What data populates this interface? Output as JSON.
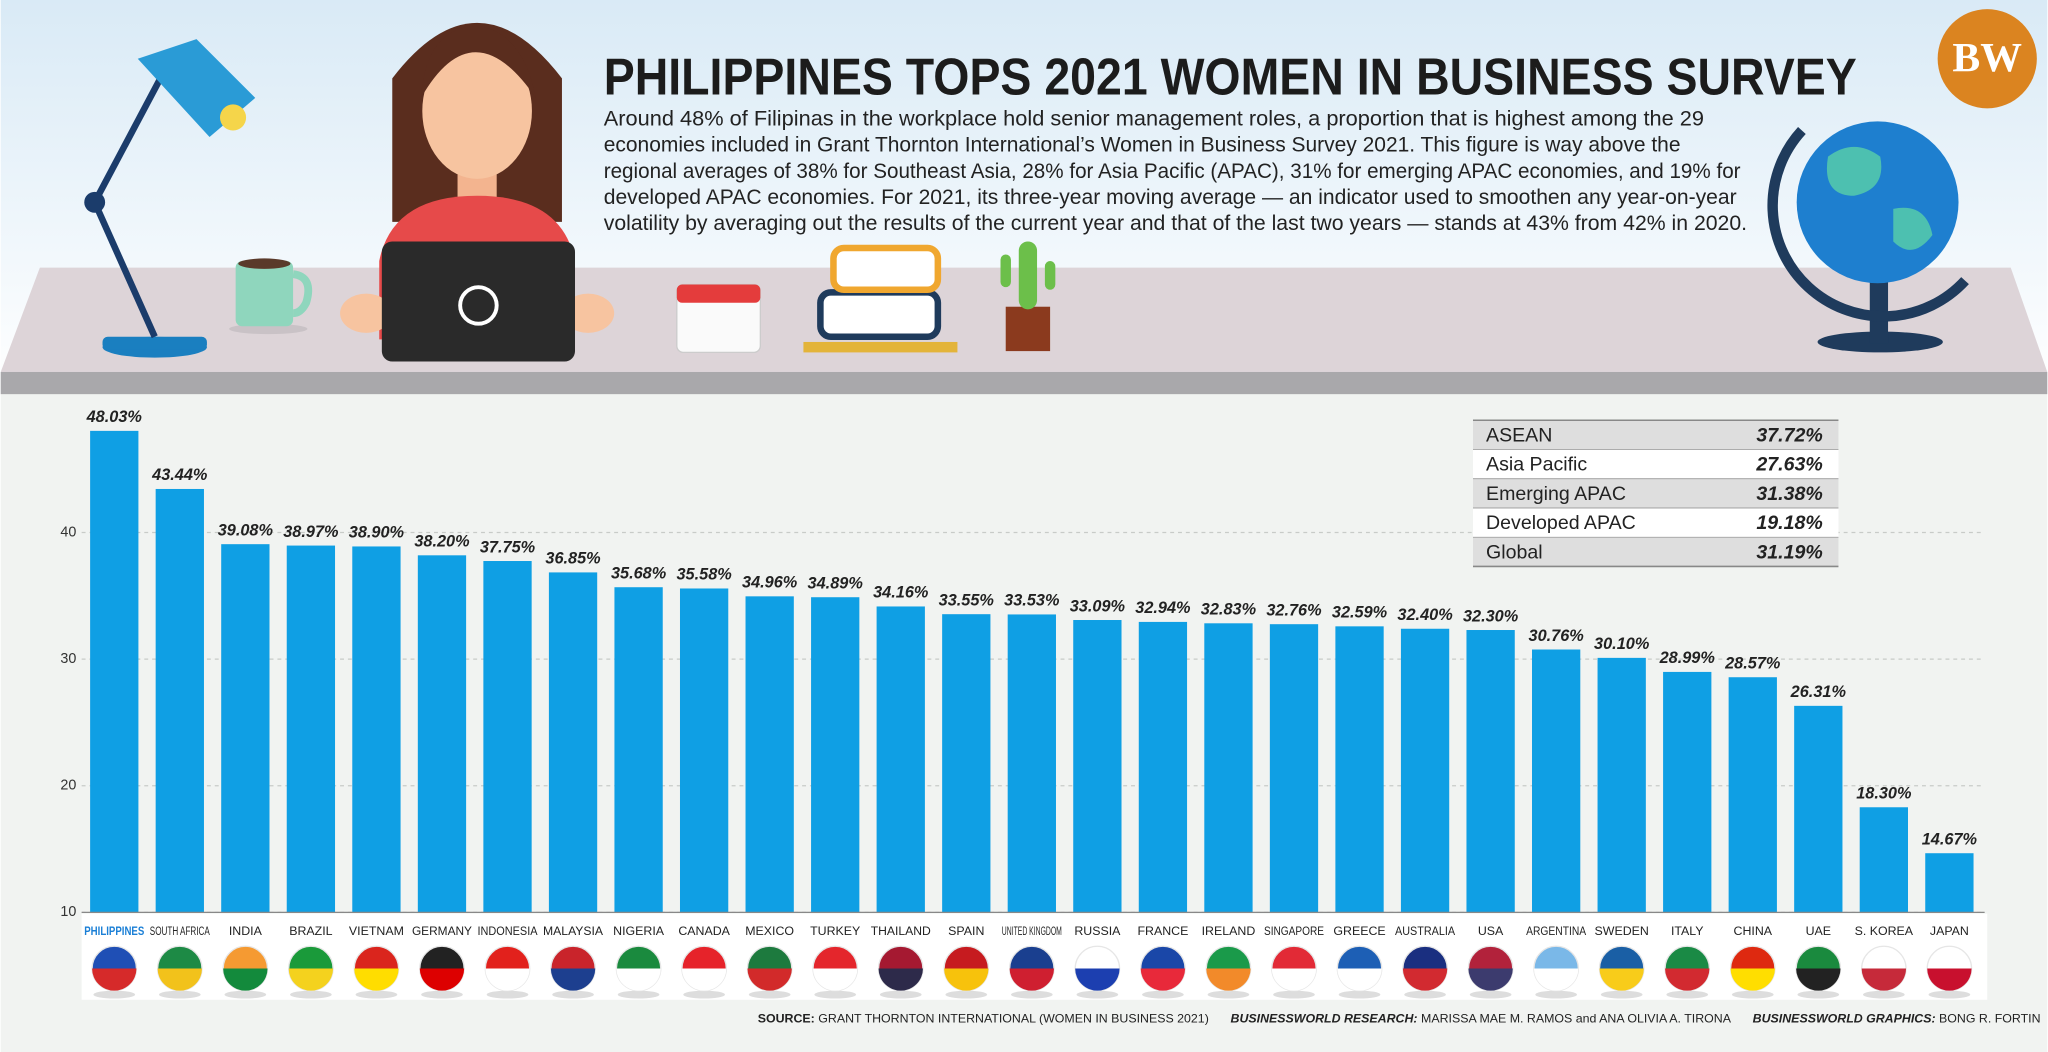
{
  "header": {
    "title": "PHILIPPINES TOPS 2021 WOMEN IN BUSINESS SURVEY",
    "logo": "BW",
    "description": [
      "Around 48% of Filipinas in the workplace hold senior management roles, a proportion that is highest among the 29",
      "economies included in Grant Thornton International’s Women in Business Survey 2021. This figure is way above the",
      "regional averages of 38% for Southeast Asia, 28% for Asia Pacific (APAC), 31% for emerging APAC economies, and 19% for",
      "developed APAC economies. For 2021, its three-year moving average — an indicator used to smoothen any year-on-year",
      "volatility by averaging out the results of the current year and that of the last two years — stands at 43% from 42% in 2020."
    ]
  },
  "chart_data": {
    "type": "bar",
    "color": "#0f9fe4",
    "highlight_color": "#1a7fd6",
    "categories": [
      "PHILIPPINES",
      "SOUTH AFRICA",
      "INDIA",
      "BRAZIL",
      "VIETNAM",
      "GERMANY",
      "INDONESIA",
      "MALAYSIA",
      "NIGERIA",
      "CANADA",
      "MEXICO",
      "TURKEY",
      "THAILAND",
      "SPAIN",
      "UNITED KINGDOM",
      "RUSSIA",
      "FRANCE",
      "IRELAND",
      "SINGAPORE",
      "GREECE",
      "AUSTRALIA",
      "USA",
      "ARGENTINA",
      "SWEDEN",
      "ITALY",
      "CHINA",
      "UAE",
      "S. KOREA",
      "JAPAN"
    ],
    "values": [
      48.03,
      43.44,
      39.08,
      38.97,
      38.9,
      38.2,
      37.75,
      36.85,
      35.68,
      35.58,
      34.96,
      34.89,
      34.16,
      33.55,
      33.53,
      33.09,
      32.94,
      32.83,
      32.76,
      32.59,
      32.4,
      32.3,
      30.76,
      30.1,
      28.99,
      28.57,
      26.31,
      18.3,
      14.67
    ],
    "value_labels": [
      "48.03%",
      "43.44%",
      "39.08%",
      "38.97%",
      "38.90%",
      "38.20%",
      "37.75%",
      "36.85%",
      "35.68%",
      "35.58%",
      "34.96%",
      "34.89%",
      "34.16%",
      "33.55%",
      "33.53%",
      "33.09%",
      "32.94%",
      "32.83%",
      "32.76%",
      "32.59%",
      "32.40%",
      "32.30%",
      "30.76%",
      "30.10%",
      "28.99%",
      "28.57%",
      "26.31%",
      "18.30%",
      "14.67%"
    ],
    "ylim": [
      10,
      50
    ],
    "yticks": [
      10,
      20,
      30,
      40
    ],
    "grid": true
  },
  "summary": {
    "labels": [
      "ASEAN",
      "Asia Pacific",
      "Emerging APAC",
      "Developed APAC",
      "Global"
    ],
    "values": [
      37.72,
      27.63,
      31.38,
      19.18,
      31.19
    ],
    "value_labels": [
      "37.72%",
      "27.63%",
      "31.38%",
      "19.18%",
      "31.19%"
    ]
  },
  "footer": {
    "source_label": "SOURCE:",
    "source": "GRANT THORNTON INTERNATIONAL (WOMEN IN BUSINESS 2021)",
    "research_label": "BUSINESSWORLD RESEARCH:",
    "research": "MARISSA MAE M. RAMOS and ANA OLIVIA A. TIRONA",
    "graphics_label": "BUSINESSWORLD GRAPHICS:",
    "graphics": "BONG R. FORTIN"
  }
}
